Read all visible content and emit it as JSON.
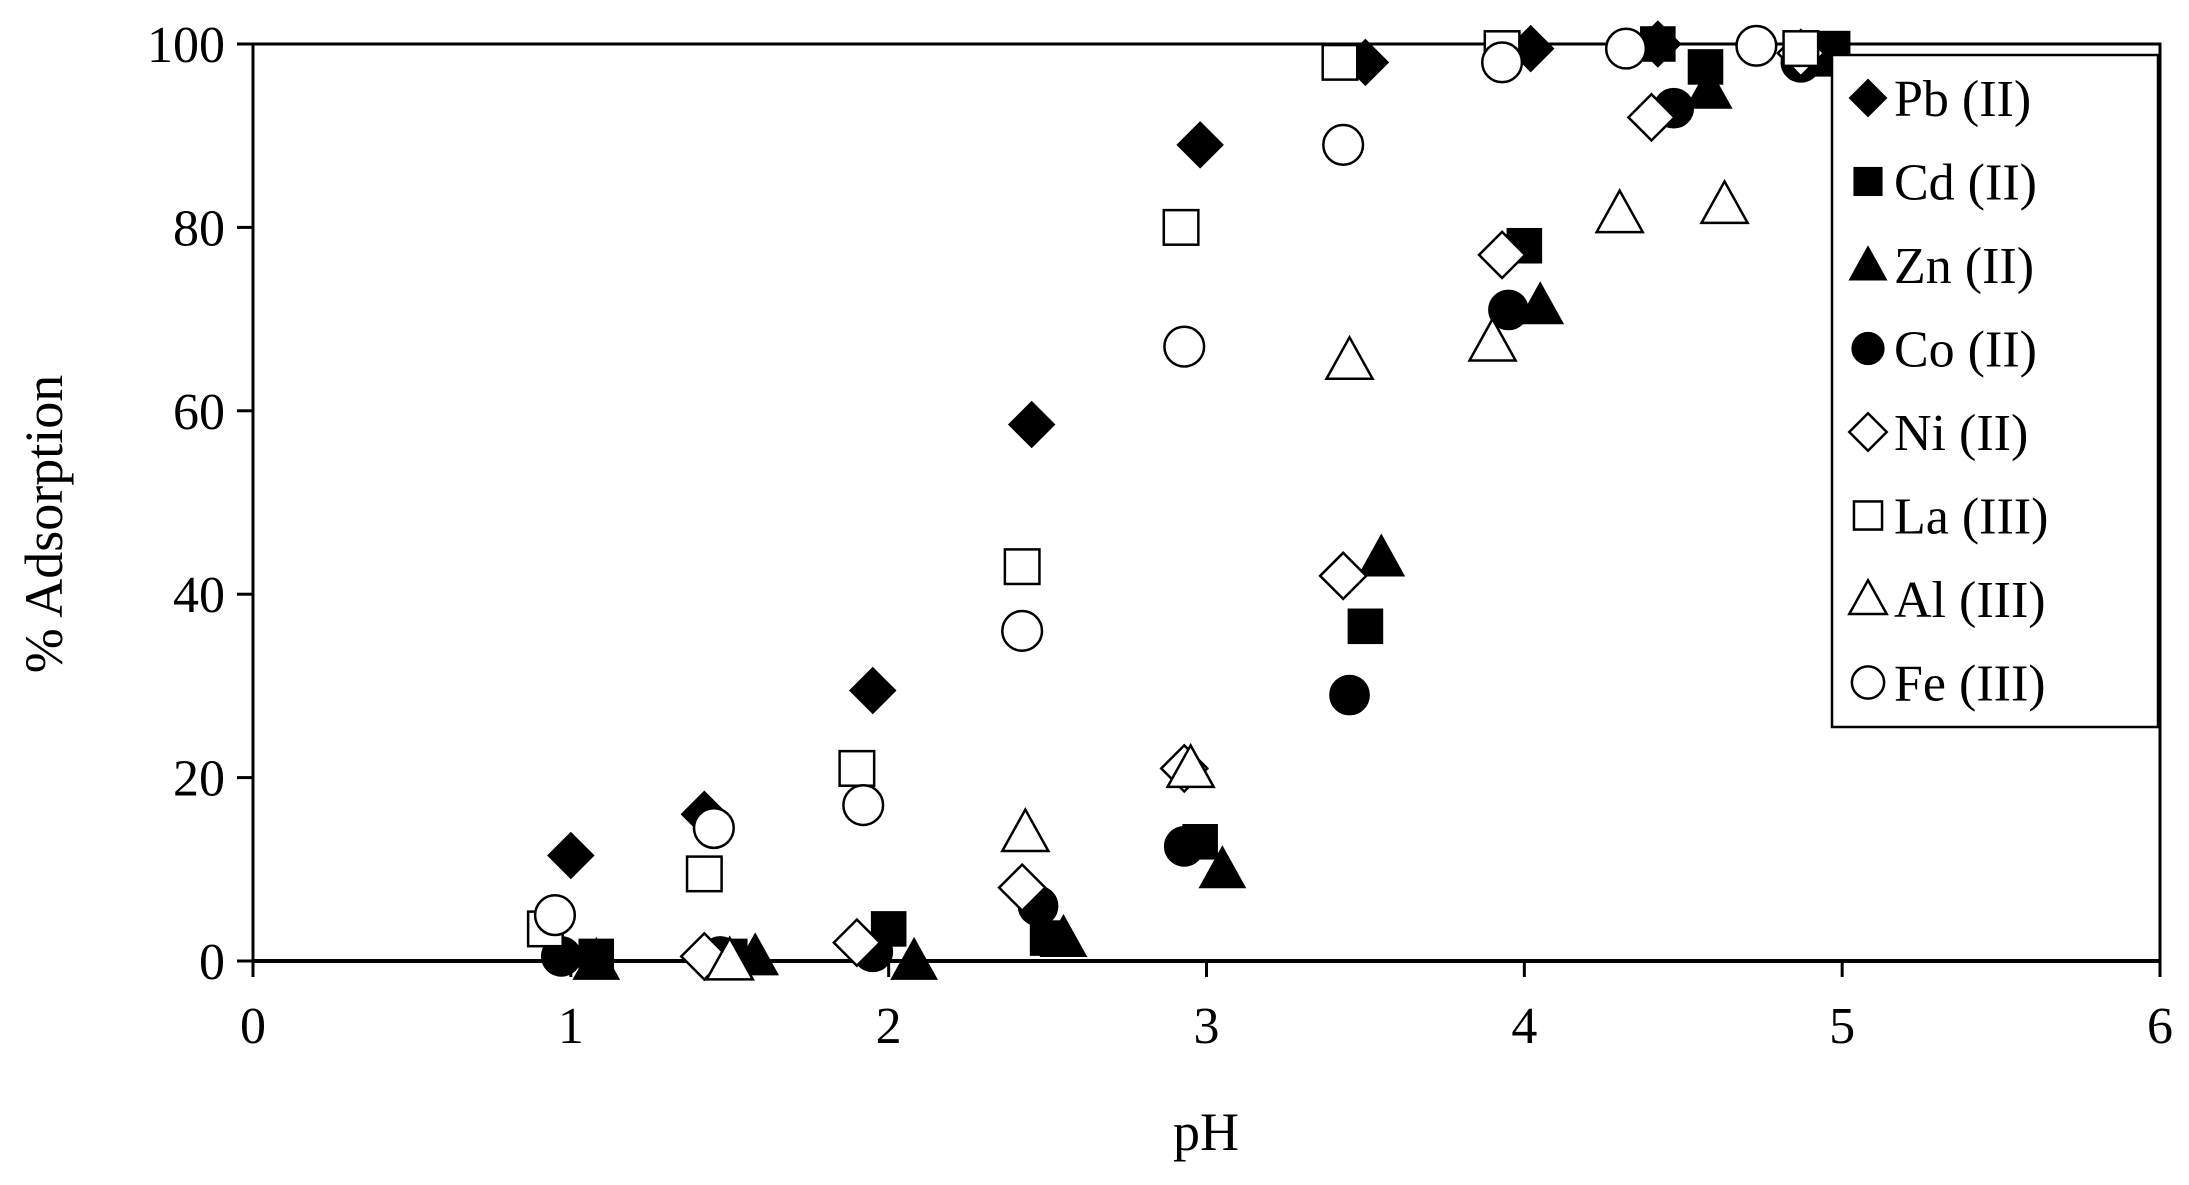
{
  "chart_data": {
    "type": "scatter",
    "title": "",
    "xlabel": "pH",
    "ylabel": "% Adsorption",
    "xlim": [
      0,
      6
    ],
    "ylim": [
      0,
      100
    ],
    "xticks": [
      "0",
      "1",
      "2",
      "3",
      "4",
      "5",
      "6"
    ],
    "yticks": [
      "0",
      "20",
      "40",
      "60",
      "80",
      "100"
    ],
    "grid": false,
    "legend_position": "top-right",
    "series": [
      {
        "name": "Pb (II)",
        "marker": "diamond",
        "fill": "#000000",
        "x": [
          1.0,
          1.42,
          1.95,
          2.45,
          2.98,
          3.5,
          4.02,
          4.42
        ],
        "y": [
          11.5,
          16,
          29.5,
          58.5,
          89,
          98,
          99.5,
          100
        ]
      },
      {
        "name": "Cd (II)",
        "marker": "square",
        "fill": "#000000",
        "x": [
          1.08,
          1.5,
          2.0,
          2.5,
          2.98,
          3.5,
          4.0,
          4.42,
          4.57,
          4.97
        ],
        "y": [
          0.5,
          0.5,
          3.5,
          2.5,
          13,
          36.5,
          78,
          100,
          97.5,
          99.5
        ]
      },
      {
        "name": "Zn (II)",
        "marker": "triangle",
        "fill": "#000000",
        "x": [
          1.08,
          1.58,
          2.08,
          2.55,
          3.05,
          3.55,
          4.05,
          4.58,
          4.92
        ],
        "y": [
          0,
          0.5,
          0,
          2.5,
          10,
          44,
          71.5,
          95,
          98.5
        ]
      },
      {
        "name": "Co (II)",
        "marker": "circle",
        "fill": "#000000",
        "x": [
          0.97,
          1.47,
          1.95,
          2.47,
          2.93,
          3.45,
          3.95,
          4.47,
          4.87
        ],
        "y": [
          0.5,
          0.5,
          1,
          6,
          12.5,
          29,
          71,
          93,
          98
        ]
      },
      {
        "name": "Ni (II)",
        "marker": "diamond",
        "fill": "none",
        "x": [
          1.42,
          1.9,
          2.42,
          2.93,
          3.43,
          3.93,
          4.4,
          4.87
        ],
        "y": [
          0.5,
          2,
          8,
          21,
          42,
          77,
          92,
          99
        ]
      },
      {
        "name": "La (III)",
        "marker": "square",
        "fill": "none",
        "x": [
          0.92,
          1.42,
          1.9,
          2.42,
          2.92,
          3.42,
          3.93,
          4.87
        ],
        "y": [
          3.5,
          9.5,
          21,
          43,
          80,
          98,
          99.5,
          99.5
        ]
      },
      {
        "name": "Al (III)",
        "marker": "triangle",
        "fill": "none",
        "x": [
          1.5,
          2.43,
          2.95,
          3.45,
          3.9,
          4.3,
          4.63
        ],
        "y": [
          0,
          14,
          21,
          65.5,
          67.5,
          81.5,
          82.5
        ]
      },
      {
        "name": "Fe (III)",
        "marker": "circle",
        "fill": "none",
        "x": [
          0.95,
          1.45,
          1.92,
          2.42,
          2.93,
          3.43,
          3.93,
          4.32,
          4.73
        ],
        "y": [
          5,
          14.5,
          17,
          36,
          67,
          89,
          98,
          99.5,
          99.8
        ]
      }
    ]
  }
}
